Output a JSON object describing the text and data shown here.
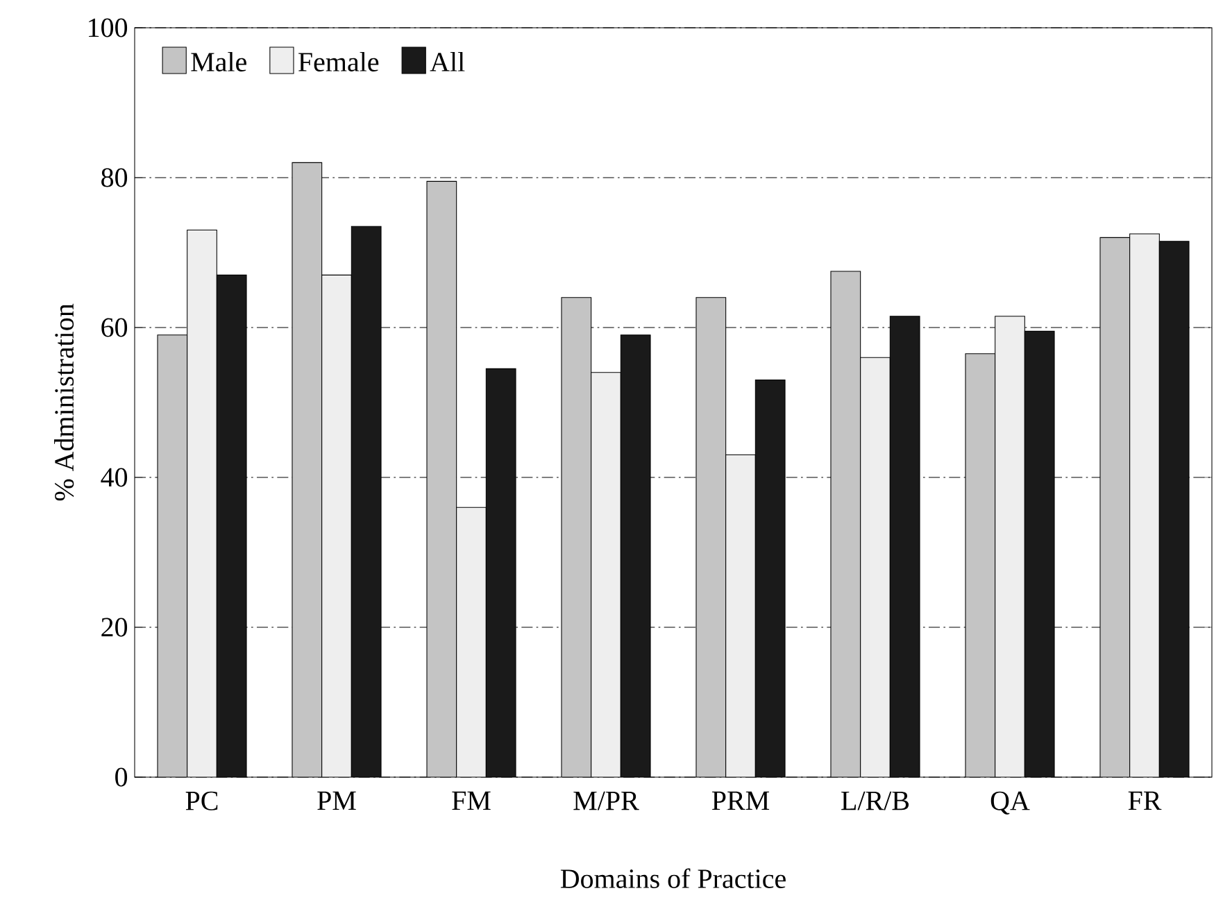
{
  "chart_data": {
    "type": "bar",
    "xlabel": "Domains of Practice",
    "ylabel": "% Administration",
    "categories": [
      "PC",
      "PM",
      "FM",
      "M/PR",
      "PRM",
      "L/R/B",
      "QA",
      "FR"
    ],
    "series": [
      {
        "name": "Male",
        "color": "#c4c4c4",
        "values": [
          59,
          82,
          79.5,
          64,
          64,
          67.5,
          56.5,
          72
        ]
      },
      {
        "name": "Female",
        "color": "#eeeeee",
        "values": [
          73,
          67,
          36,
          54,
          43,
          56,
          61.5,
          72.5
        ]
      },
      {
        "name": "All",
        "color": "#1a1a1a",
        "values": [
          67,
          73.5,
          54.5,
          59,
          53,
          61.5,
          59.5,
          71.5
        ]
      }
    ],
    "ylim": [
      0,
      100
    ],
    "yticks": [
      0,
      20,
      40,
      60,
      80,
      100
    ],
    "grid": "y",
    "legend": "top left"
  }
}
